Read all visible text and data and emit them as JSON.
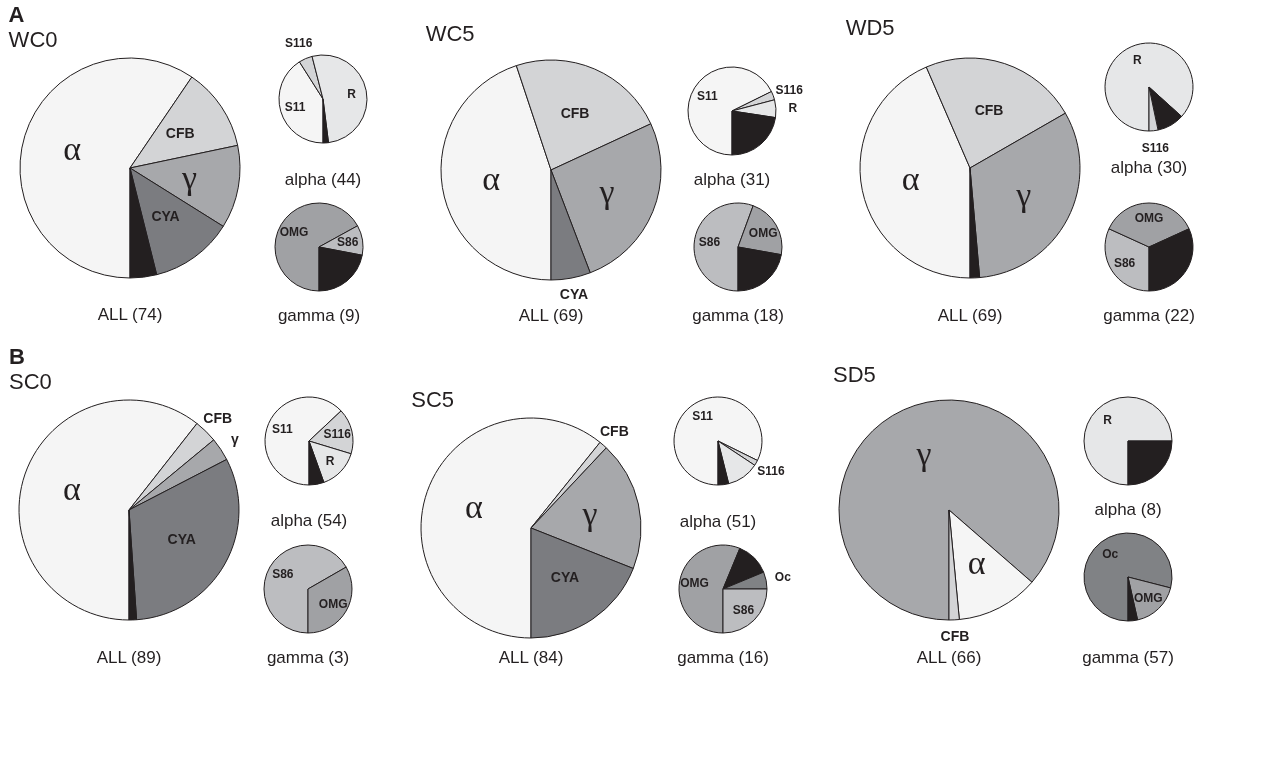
{
  "chart_data": [
    {
      "type": "pie",
      "title": "WC0",
      "xlabel": "ALL (74)",
      "annotations": [
        "A"
      ],
      "categories": [
        "α",
        "CFB",
        "γ",
        "CYA",
        null
      ],
      "values": [
        59.5,
        12.2,
        12.2,
        12.2,
        3.9
      ],
      "colors": [
        "#f5f5f5",
        "#d3d4d6",
        "#a7a8ab",
        "#7b7c80",
        "#231f20"
      ]
    },
    {
      "type": "pie",
      "xlabel": "alpha (44)",
      "categories": [
        "S11",
        "S116",
        "R",
        null
      ],
      "values": [
        41,
        5,
        52,
        2
      ],
      "colors": [
        "#f5f5f5",
        "#d3d4d6",
        "#e6e7e8",
        "#231f20"
      ]
    },
    {
      "type": "pie",
      "xlabel": "gamma (9)",
      "categories": [
        "OMG",
        "S86",
        null
      ],
      "values": [
        67,
        11,
        22
      ],
      "colors": [
        "#a0a1a4",
        "#bcbdc0",
        "#231f20"
      ]
    },
    {
      "type": "pie",
      "title": "WC5",
      "xlabel": "ALL (69)",
      "categories": [
        "α",
        "CFB",
        "γ",
        "CYA"
      ],
      "values": [
        44.9,
        23.2,
        26.1,
        5.8
      ],
      "colors": [
        "#f5f5f5",
        "#d3d4d6",
        "#a7a8ab",
        "#7b7c80"
      ]
    },
    {
      "type": "pie",
      "xlabel": "alpha (31)",
      "categories": [
        "S11",
        "S116",
        "R",
        null
      ],
      "values": [
        67.7,
        3.2,
        6.5,
        22.6
      ],
      "colors": [
        "#f5f5f5",
        "#d3d4d6",
        "#e6e7e8",
        "#231f20"
      ]
    },
    {
      "type": "pie",
      "xlabel": "gamma (18)",
      "categories": [
        "S86",
        "OMG",
        null
      ],
      "values": [
        55.6,
        22.2,
        22.2
      ],
      "colors": [
        "#bcbdc0",
        "#a0a1a4",
        "#231f20"
      ]
    },
    {
      "type": "pie",
      "title": "WD5",
      "xlabel": "ALL (69)",
      "categories": [
        "α",
        "CFB",
        "γ",
        null
      ],
      "values": [
        43.5,
        23.2,
        31.9,
        1.4
      ],
      "colors": [
        "#f5f5f5",
        "#d3d4d6",
        "#a7a8ab",
        "#231f20"
      ]
    },
    {
      "type": "pie",
      "xlabel": "alpha (30)",
      "categories": [
        "R",
        null,
        "S116"
      ],
      "values": [
        86.7,
        10,
        3.3
      ],
      "colors": [
        "#e6e7e8",
        "#231f20",
        "#d3d4d6"
      ]
    },
    {
      "type": "pie",
      "xlabel": "gamma (22)",
      "categories": [
        "S86",
        "OMG",
        null
      ],
      "values": [
        31.8,
        36.4,
        31.8
      ],
      "colors": [
        "#bcbdc0",
        "#a0a1a4",
        "#231f20"
      ]
    },
    {
      "type": "pie",
      "title": "SC0",
      "xlabel": "ALL (89)",
      "annotations": [
        "B"
      ],
      "categories": [
        "α",
        "CFB",
        "γ",
        "CYA",
        null
      ],
      "values": [
        60.6,
        3.4,
        3.4,
        31.5,
        1.1
      ],
      "colors": [
        "#f5f5f5",
        "#d3d4d6",
        "#a7a8ab",
        "#7b7c80",
        "#231f20"
      ]
    },
    {
      "type": "pie",
      "xlabel": "alpha (54)",
      "categories": [
        "S11",
        "S116",
        "R",
        null
      ],
      "values": [
        63,
        16.7,
        14.8,
        5.5
      ],
      "colors": [
        "#f5f5f5",
        "#d3d4d6",
        "#e6e7e8",
        "#231f20"
      ]
    },
    {
      "type": "pie",
      "xlabel": "gamma (3)",
      "categories": [
        "S86",
        "OMG"
      ],
      "values": [
        66.7,
        33.3
      ],
      "colors": [
        "#bcbdc0",
        "#a0a1a4"
      ]
    },
    {
      "type": "pie",
      "title": "SC5",
      "xlabel": "ALL (84)",
      "categories": [
        "α",
        "CFB",
        "γ",
        "CYA"
      ],
      "values": [
        60.8,
        1.2,
        19,
        19
      ],
      "colors": [
        "#f5f5f5",
        "#d3d4d6",
        "#a7a8ab",
        "#7b7c80"
      ]
    },
    {
      "type": "pie",
      "xlabel": "alpha (51)",
      "categories": [
        "S11",
        "S116",
        null,
        null
      ],
      "values": [
        82.3,
        2,
        11.8,
        3.9
      ],
      "colors": [
        "#f5f5f5",
        "#d3d4d6",
        "#e6e7e8",
        "#231f20"
      ]
    },
    {
      "type": "pie",
      "xlabel": "gamma (16)",
      "categories": [
        "OMG",
        null,
        "Oc",
        "S86"
      ],
      "values": [
        56.25,
        12.5,
        6.25,
        25
      ],
      "colors": [
        "#a0a1a4",
        "#231f20",
        "#808285",
        "#bcbdc0"
      ]
    },
    {
      "type": "pie",
      "title": "SD5",
      "xlabel": "ALL (66)",
      "categories": [
        "γ",
        "α",
        "CFB"
      ],
      "values": [
        86.4,
        12.1,
        1.5
      ],
      "colors": [
        "#a7a8ab",
        "#f5f5f5",
        "#d3d4d6"
      ]
    },
    {
      "type": "pie",
      "xlabel": "alpha (8)",
      "categories": [
        "R",
        null
      ],
      "values": [
        75,
        25
      ],
      "colors": [
        "#e6e7e8",
        "#231f20"
      ]
    },
    {
      "type": "pie",
      "xlabel": "gamma (57)",
      "categories": [
        "Oc",
        "OMG",
        null
      ],
      "values": [
        79,
        17.5,
        3.5
      ],
      "colors": [
        "#808285",
        "#a0a1a4",
        "#231f20"
      ]
    }
  ]
}
